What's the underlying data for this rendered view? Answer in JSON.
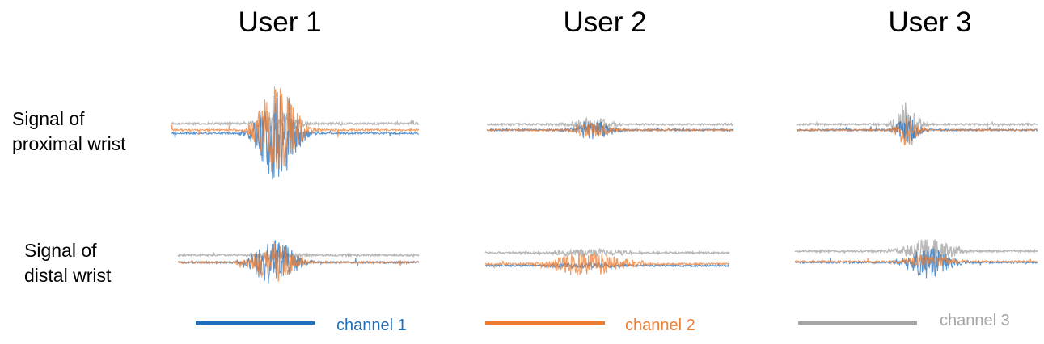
{
  "chart_data": {
    "type": "line",
    "columns": [
      "User 1",
      "User 2",
      "User 3"
    ],
    "rows": [
      {
        "line1": "Signal of",
        "line2": "proximal wrist"
      },
      {
        "line1": "Signal of",
        "line2": "distal wrist"
      }
    ],
    "series": [
      {
        "name": "channel 1",
        "color": "#1f6fbf"
      },
      {
        "name": "channel 2",
        "color": "#ed7d31"
      },
      {
        "name": "channel 3",
        "color": "#a6a6a6"
      }
    ],
    "panels": [
      {
        "user": "User 1",
        "signal": "proximal wrist",
        "burst_center": 0.43,
        "burst_width": 0.08,
        "amp": [
          1.0,
          1.0,
          0.25
        ],
        "seed": 11
      },
      {
        "user": "User 2",
        "signal": "proximal wrist",
        "burst_center": 0.43,
        "burst_width": 0.08,
        "amp": [
          0.2,
          0.16,
          0.14
        ],
        "seed": 23
      },
      {
        "user": "User 3",
        "signal": "proximal wrist",
        "burst_center": 0.46,
        "burst_width": 0.05,
        "amp": [
          0.28,
          0.32,
          0.5
        ],
        "seed": 37
      },
      {
        "user": "User 1",
        "signal": "distal wrist",
        "burst_center": 0.4,
        "burst_width": 0.09,
        "amp": [
          0.7,
          0.6,
          0.15
        ],
        "seed": 41
      },
      {
        "user": "User 2",
        "signal": "distal wrist",
        "burst_center": 0.42,
        "burst_width": 0.17,
        "amp": [
          0.08,
          0.35,
          0.1
        ],
        "seed": 53
      },
      {
        "user": "User 3",
        "signal": "distal wrist",
        "burst_center": 0.55,
        "burst_width": 0.1,
        "amp": [
          0.45,
          0.2,
          0.4
        ],
        "seed": 67
      }
    ]
  }
}
